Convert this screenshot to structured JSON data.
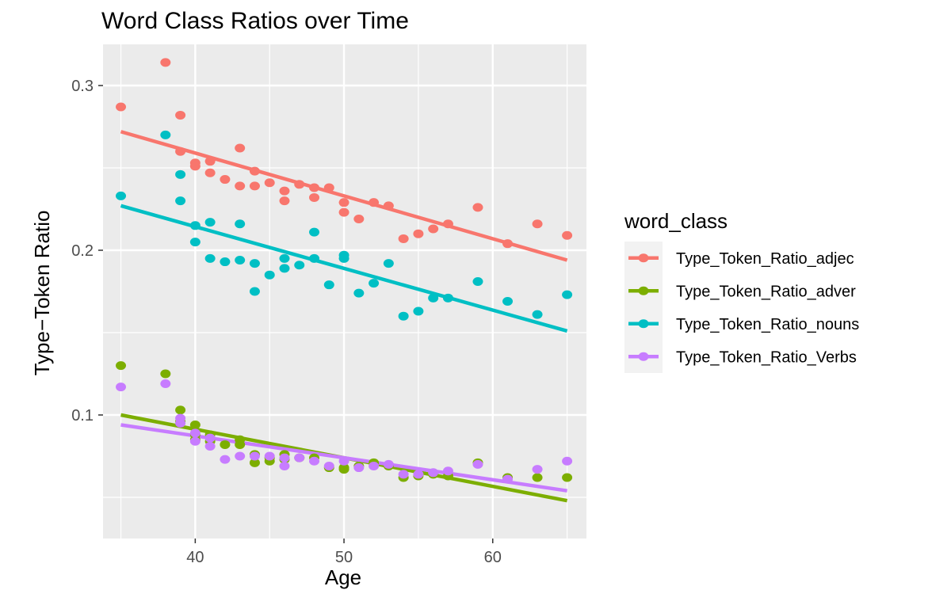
{
  "chart_data": {
    "type": "scatter",
    "title": "Word Class Ratios over Time",
    "xlabel": "Age",
    "ylabel": "Type−Token Ratio",
    "xlim": [
      33.8,
      66.3
    ],
    "ylim": [
      0.025,
      0.325
    ],
    "x_ticks": [
      40,
      50,
      60
    ],
    "y_ticks": [
      0.1,
      0.2,
      0.3
    ],
    "x_tick_labels": [
      "40",
      "50",
      "60"
    ],
    "y_tick_labels": [
      "0.1",
      "0.2",
      "0.3"
    ],
    "grid": true,
    "legend": {
      "title": "word_class",
      "position": "right"
    },
    "series": [
      {
        "name": "Type_Token_Ratio_adjec",
        "color": "#F8766D",
        "points": [
          [
            35,
            0.287
          ],
          [
            38,
            0.314
          ],
          [
            39,
            0.282
          ],
          [
            39,
            0.26
          ],
          [
            40,
            0.253
          ],
          [
            40,
            0.251
          ],
          [
            41,
            0.254
          ],
          [
            41,
            0.247
          ],
          [
            42,
            0.243
          ],
          [
            43,
            0.262
          ],
          [
            43,
            0.239
          ],
          [
            44,
            0.248
          ],
          [
            44,
            0.239
          ],
          [
            45,
            0.241
          ],
          [
            46,
            0.236
          ],
          [
            46,
            0.23
          ],
          [
            47,
            0.24
          ],
          [
            48,
            0.238
          ],
          [
            48,
            0.232
          ],
          [
            49,
            0.238
          ],
          [
            50,
            0.229
          ],
          [
            50,
            0.223
          ],
          [
            51,
            0.219
          ],
          [
            52,
            0.229
          ],
          [
            53,
            0.227
          ],
          [
            54,
            0.207
          ],
          [
            55,
            0.21
          ],
          [
            56,
            0.213
          ],
          [
            57,
            0.216
          ],
          [
            59,
            0.226
          ],
          [
            61,
            0.204
          ],
          [
            63,
            0.216
          ],
          [
            65,
            0.209
          ]
        ],
        "fit": [
          [
            35,
            0.272
          ],
          [
            65,
            0.194
          ]
        ]
      },
      {
        "name": "Type_Token_Ratio_adver",
        "color": "#7CAE00",
        "points": [
          [
            35,
            0.13
          ],
          [
            38,
            0.125
          ],
          [
            39,
            0.103
          ],
          [
            39,
            0.096
          ],
          [
            40,
            0.094
          ],
          [
            40,
            0.088
          ],
          [
            40,
            0.085
          ],
          [
            41,
            0.088
          ],
          [
            41,
            0.084
          ],
          [
            42,
            0.082
          ],
          [
            43,
            0.085
          ],
          [
            43,
            0.082
          ],
          [
            44,
            0.076
          ],
          [
            44,
            0.071
          ],
          [
            45,
            0.074
          ],
          [
            45,
            0.072
          ],
          [
            46,
            0.076
          ],
          [
            46,
            0.073
          ],
          [
            47,
            0.074
          ],
          [
            48,
            0.074
          ],
          [
            49,
            0.068
          ],
          [
            50,
            0.068
          ],
          [
            50,
            0.067
          ],
          [
            51,
            0.069
          ],
          [
            52,
            0.071
          ],
          [
            53,
            0.069
          ],
          [
            54,
            0.062
          ],
          [
            55,
            0.063
          ],
          [
            56,
            0.064
          ],
          [
            57,
            0.063
          ],
          [
            59,
            0.071
          ],
          [
            61,
            0.062
          ],
          [
            63,
            0.062
          ],
          [
            65,
            0.062
          ]
        ],
        "fit": [
          [
            35,
            0.1
          ],
          [
            65,
            0.048
          ]
        ]
      },
      {
        "name": "Type_Token_Ratio_nouns",
        "color": "#00BFC4",
        "points": [
          [
            35,
            0.233
          ],
          [
            38,
            0.27
          ],
          [
            39,
            0.246
          ],
          [
            39,
            0.23
          ],
          [
            40,
            0.215
          ],
          [
            40,
            0.205
          ],
          [
            41,
            0.217
          ],
          [
            41,
            0.195
          ],
          [
            42,
            0.193
          ],
          [
            43,
            0.216
          ],
          [
            43,
            0.194
          ],
          [
            44,
            0.192
          ],
          [
            44,
            0.175
          ],
          [
            45,
            0.185
          ],
          [
            46,
            0.195
          ],
          [
            46,
            0.189
          ],
          [
            47,
            0.191
          ],
          [
            48,
            0.211
          ],
          [
            48,
            0.195
          ],
          [
            49,
            0.179
          ],
          [
            50,
            0.197
          ],
          [
            50,
            0.195
          ],
          [
            51,
            0.174
          ],
          [
            52,
            0.18
          ],
          [
            53,
            0.192
          ],
          [
            54,
            0.16
          ],
          [
            55,
            0.163
          ],
          [
            56,
            0.171
          ],
          [
            57,
            0.171
          ],
          [
            59,
            0.181
          ],
          [
            61,
            0.169
          ],
          [
            63,
            0.161
          ],
          [
            65,
            0.173
          ]
        ],
        "fit": [
          [
            35,
            0.227
          ],
          [
            65,
            0.151
          ]
        ]
      },
      {
        "name": "Type_Token_Ratio_Verbs",
        "color": "#C77CFF",
        "points": [
          [
            35,
            0.117
          ],
          [
            38,
            0.119
          ],
          [
            39,
            0.098
          ],
          [
            39,
            0.095
          ],
          [
            40,
            0.089
          ],
          [
            40,
            0.084
          ],
          [
            41,
            0.086
          ],
          [
            41,
            0.081
          ],
          [
            42,
            0.073
          ],
          [
            43,
            0.075
          ],
          [
            44,
            0.075
          ],
          [
            45,
            0.075
          ],
          [
            46,
            0.069
          ],
          [
            46,
            0.074
          ],
          [
            47,
            0.074
          ],
          [
            48,
            0.072
          ],
          [
            49,
            0.069
          ],
          [
            50,
            0.072
          ],
          [
            51,
            0.068
          ],
          [
            52,
            0.069
          ],
          [
            53,
            0.07
          ],
          [
            54,
            0.064
          ],
          [
            55,
            0.064
          ],
          [
            56,
            0.065
          ],
          [
            57,
            0.066
          ],
          [
            59,
            0.07
          ],
          [
            61,
            0.061
          ],
          [
            63,
            0.067
          ],
          [
            65,
            0.072
          ]
        ],
        "fit": [
          [
            35,
            0.094
          ],
          [
            65,
            0.054
          ]
        ]
      }
    ]
  }
}
